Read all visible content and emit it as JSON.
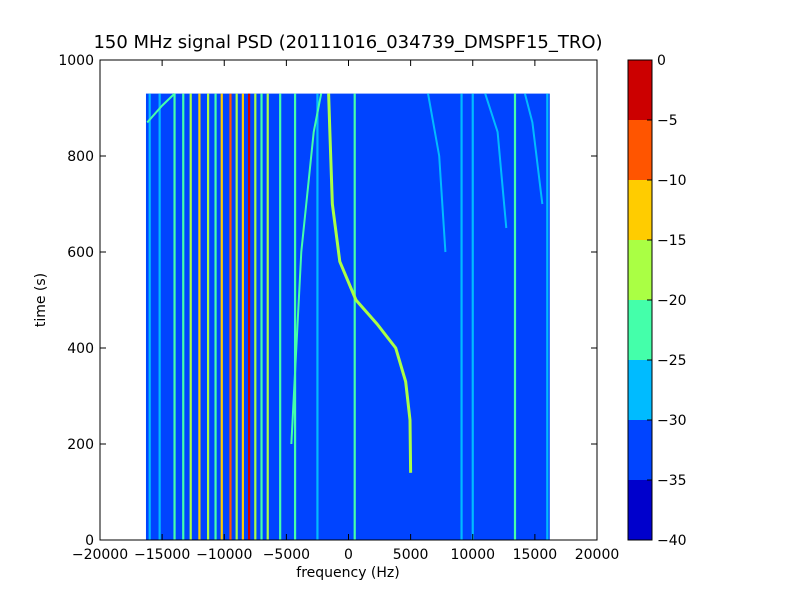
{
  "chart_data": {
    "type": "heatmap",
    "title": "150 MHz signal PSD (20111016_034739_DMSPF15_TRO)",
    "xlabel": "frequency (Hz)",
    "ylabel": "time (s)",
    "xlim": [
      -20000,
      20000
    ],
    "ylim": [
      0,
      1000
    ],
    "xticks": [
      -20000,
      -15000,
      -10000,
      -5000,
      0,
      5000,
      10000,
      15000,
      20000
    ],
    "xtick_labels": [
      "−20000",
      "−15000",
      "−10000",
      "−5000",
      "0",
      "5000",
      "10000",
      "15000",
      "20000"
    ],
    "yticks": [
      0,
      200,
      400,
      600,
      800,
      1000
    ],
    "ytick_labels": [
      "0",
      "200",
      "400",
      "600",
      "800",
      "1000"
    ],
    "data_extent": {
      "x": [
        -16300,
        16200
      ],
      "y": [
        0,
        930
      ]
    },
    "background_level": -33,
    "colorbar": {
      "levels": [
        -40,
        -35,
        -30,
        -25,
        -20,
        -15,
        -10,
        -5,
        0
      ],
      "tick_labels": [
        "−40",
        "−35",
        "−30",
        "−25",
        "−20",
        "−15",
        "−10",
        "−5",
        "0"
      ],
      "colors": [
        "#0000cc",
        "#0044ff",
        "#00bbff",
        "#44ffaa",
        "#aaff44",
        "#ffcc00",
        "#ff5500",
        "#cc0000"
      ]
    },
    "vertical_lines": [
      {
        "x": -16000,
        "level": -26
      },
      {
        "x": -15200,
        "level": -28
      },
      {
        "x": -14000,
        "level": -24
      },
      {
        "x": -13300,
        "level": -22
      },
      {
        "x": -12700,
        "level": -20
      },
      {
        "x": -12000,
        "level": -12
      },
      {
        "x": -11300,
        "level": -18
      },
      {
        "x": -10700,
        "level": -22
      },
      {
        "x": -10200,
        "level": -14
      },
      {
        "x": -9500,
        "level": -6
      },
      {
        "x": -9000,
        "level": -20
      },
      {
        "x": -8500,
        "level": -12
      },
      {
        "x": -8000,
        "level": -4
      },
      {
        "x": -7500,
        "level": -16
      },
      {
        "x": -7000,
        "level": -24
      },
      {
        "x": -6500,
        "level": -18
      },
      {
        "x": -5500,
        "level": -24
      },
      {
        "x": -4300,
        "level": -22
      },
      {
        "x": -2500,
        "level": -26
      },
      {
        "x": 500,
        "level": -24
      },
      {
        "x": 9100,
        "level": -26
      },
      {
        "x": 10000,
        "level": -27
      },
      {
        "x": 13400,
        "level": -25
      },
      {
        "x": 16000,
        "level": -27
      }
    ],
    "doppler_track": {
      "points": [
        [
          5000,
          140
        ],
        [
          4950,
          250
        ],
        [
          4600,
          330
        ],
        [
          3800,
          400
        ],
        [
          2300,
          450
        ],
        [
          600,
          500
        ],
        [
          -700,
          580
        ],
        [
          -1300,
          700
        ],
        [
          -1500,
          850
        ],
        [
          -1600,
          930
        ]
      ],
      "level": -17
    },
    "faint_tracks": [
      {
        "points": [
          [
            -16200,
            870
          ],
          [
            -15000,
            905
          ],
          [
            -14000,
            930
          ]
        ],
        "level": -24
      },
      {
        "points": [
          [
            -4600,
            200
          ],
          [
            -3800,
            600
          ],
          [
            -2800,
            850
          ],
          [
            -2200,
            930
          ]
        ],
        "level": -25
      },
      {
        "points": [
          [
            7800,
            600
          ],
          [
            7300,
            800
          ],
          [
            6400,
            930
          ]
        ],
        "level": -26
      },
      {
        "points": [
          [
            12700,
            650
          ],
          [
            12000,
            850
          ],
          [
            11000,
            930
          ]
        ],
        "level": -26
      },
      {
        "points": [
          [
            15600,
            700
          ],
          [
            14800,
            870
          ],
          [
            14200,
            930
          ]
        ],
        "level": -26
      }
    ]
  }
}
